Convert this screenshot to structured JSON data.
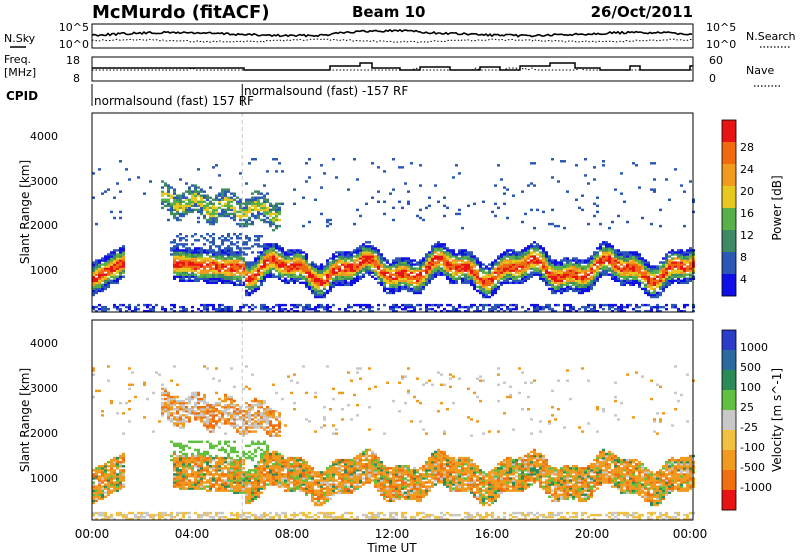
{
  "header": {
    "station": "McMurdo (fitACF)",
    "beam": "Beam 10",
    "date": "26/Oct/2011"
  },
  "side_labels": {
    "nsky": "N.Sky",
    "nsearch": "N.Search",
    "freq_line1": "Freq.",
    "freq_line2": "[MHz]",
    "nave": "Nave",
    "cpid": "CPID"
  },
  "noise_panel": {
    "left_ticks": [
      "10^5",
      "10^0"
    ],
    "right_ticks": [
      "10^5",
      "10^0"
    ]
  },
  "freq_panel": {
    "left_ticks": [
      "18",
      "8"
    ],
    "right_ticks": [
      "60",
      "0"
    ]
  },
  "cpid_panel": {
    "segment1": "normalsound (fast) 157 RF",
    "segment2": "normalsound (fast) -157 RF",
    "switch_hour": 6.0
  },
  "colors": {
    "power": [
      "#1010e6",
      "#2a58b4",
      "#3d8a64",
      "#58b04a",
      "#e6c81e",
      "#f09a1e",
      "#f06a10",
      "#e81414"
    ],
    "velocity": [
      "#2a3cc8",
      "#2a6aa0",
      "#2c8a58",
      "#60c040",
      "#c8c8c8",
      "#f0c040",
      "#f09a20",
      "#f07010",
      "#e81414"
    ],
    "ground_scatter": "#8c8c8c"
  },
  "chart_data": [
    {
      "panel": "power",
      "type": "heatmap",
      "xlabel": "",
      "ylabel": "Slant Range [km]",
      "xlim_hours": [
        0,
        24
      ],
      "ylim": [
        180,
        4600
      ],
      "y_ticks": [
        "1000",
        "2000",
        "3000",
        "4000"
      ],
      "colorbar_label": "Power [dB]",
      "colorbar_ticks": [
        "4",
        "8",
        "12",
        "16",
        "20",
        "24",
        "28"
      ],
      "colorbar_range": [
        0,
        32
      ]
    },
    {
      "panel": "velocity",
      "type": "heatmap",
      "xlabel": "Time UT",
      "ylabel": "Slant Range [km]",
      "x_ticks": [
        "00:00",
        "04:00",
        "08:00",
        "12:00",
        "16:00",
        "20:00",
        "00:00"
      ],
      "xlim_hours": [
        0,
        24
      ],
      "ylim": [
        180,
        4600
      ],
      "y_ticks": [
        "1000",
        "2000",
        "3000",
        "4000"
      ],
      "colorbar_label": "Velocity [m s^-1]",
      "colorbar_ticks": [
        "1000",
        "500",
        "100",
        "25",
        "-25",
        "-100",
        "-500",
        "-1000"
      ]
    }
  ]
}
